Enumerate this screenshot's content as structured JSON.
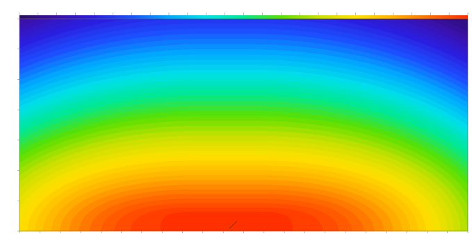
{
  "chart_data": {
    "type": "heatmap",
    "title": "",
    "ylabel": "",
    "xlabel": "",
    "annotation": "",
    "x_tick_labels": [],
    "y_tick_labels": [],
    "colorbar_tick_labels": [],
    "color_scale": [
      "#2a0d5e",
      "#3b10a8",
      "#2a1ee0",
      "#1c50ff",
      "#00a8ff",
      "#00e0e8",
      "#00e890",
      "#5ae000",
      "#c8e000",
      "#ffe000",
      "#ffb000",
      "#ff6a00",
      "#ff3000"
    ],
    "grid": false,
    "legend": "colorbar-top"
  }
}
